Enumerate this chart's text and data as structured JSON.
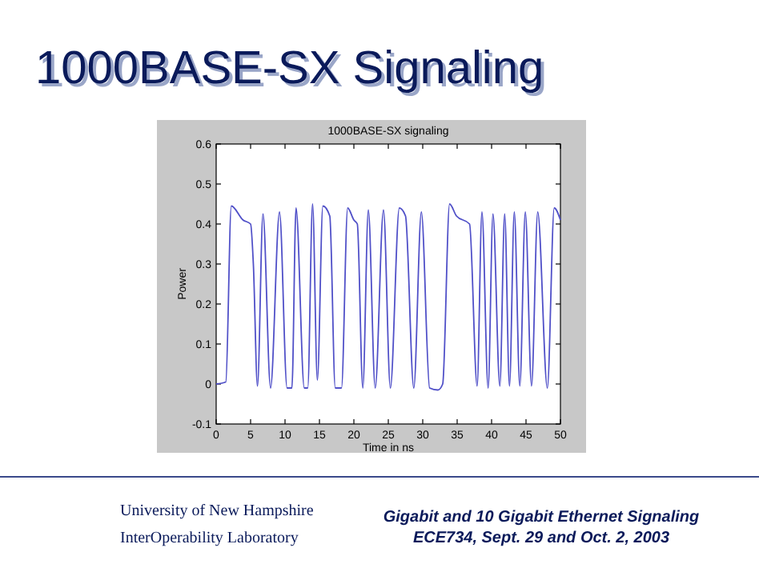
{
  "chart_data": {
    "type": "line",
    "title": "1000BASE-SX Signaling",
    "subtitle": "1000BASE-SX signaling",
    "xlabel": "Time in ns",
    "ylabel": "Power",
    "x": [
      0,
      1.4,
      2.2,
      3.9,
      5.0,
      5.4,
      6.0,
      6.8,
      7.9,
      9.2,
      10.3,
      11.0,
      11.6,
      12.8,
      13.3,
      14.0,
      14.7,
      15.5,
      16.5,
      17.3,
      18.2,
      19.1,
      20.0,
      20.5,
      21.3,
      22.1,
      23.1,
      24.3,
      25.3,
      26.6,
      27.5,
      28.7,
      29.8,
      31.0,
      32.2,
      32.9,
      33.9,
      34.9,
      36.8,
      37.9,
      38.6,
      39.5,
      40.2,
      41.2,
      41.9,
      42.6,
      43.3,
      44.1,
      44.9,
      45.8,
      46.7,
      48.1,
      49.1,
      50
    ],
    "series": [
      {
        "color": "#5050c8",
        "values": [
          0,
          0.005,
          0.445,
          0.41,
          0.4,
          0.3,
          -0.005,
          0.425,
          -0.01,
          0.43,
          -0.01,
          -0.01,
          0.44,
          -0.01,
          -0.01,
          0.45,
          0.01,
          0.445,
          0.42,
          -0.01,
          -0.01,
          0.44,
          0.41,
          0.4,
          -0.01,
          0.435,
          -0.01,
          0.435,
          -0.01,
          0.44,
          0.42,
          -0.01,
          0.43,
          -0.01,
          -0.015,
          0,
          0.45,
          0.42,
          0.4,
          -0.005,
          0.43,
          -0.01,
          0.425,
          -0.005,
          0.425,
          -0.005,
          0.43,
          -0.005,
          0.43,
          -0.005,
          0.43,
          -0.01,
          0.44,
          0.41
        ]
      }
    ],
    "xlim": [
      0,
      50
    ],
    "xticks": [
      0,
      5,
      10,
      15,
      20,
      25,
      30,
      35,
      40,
      45,
      50
    ],
    "ylim": [
      -0.1,
      0.6
    ],
    "yticks": [
      -0.1,
      0,
      0.1,
      0.2,
      0.3,
      0.4,
      0.5,
      0.6
    ],
    "grid": false,
    "marker": "none",
    "line_style": "solid",
    "annotations": [
      "University of New Hampshire",
      "InterOperability Laboratory",
      "Gigabit and 10 Gigabit Ethernet Signaling",
      "ECE734, Sept. 29 and Oct. 2, 2003"
    ]
  }
}
